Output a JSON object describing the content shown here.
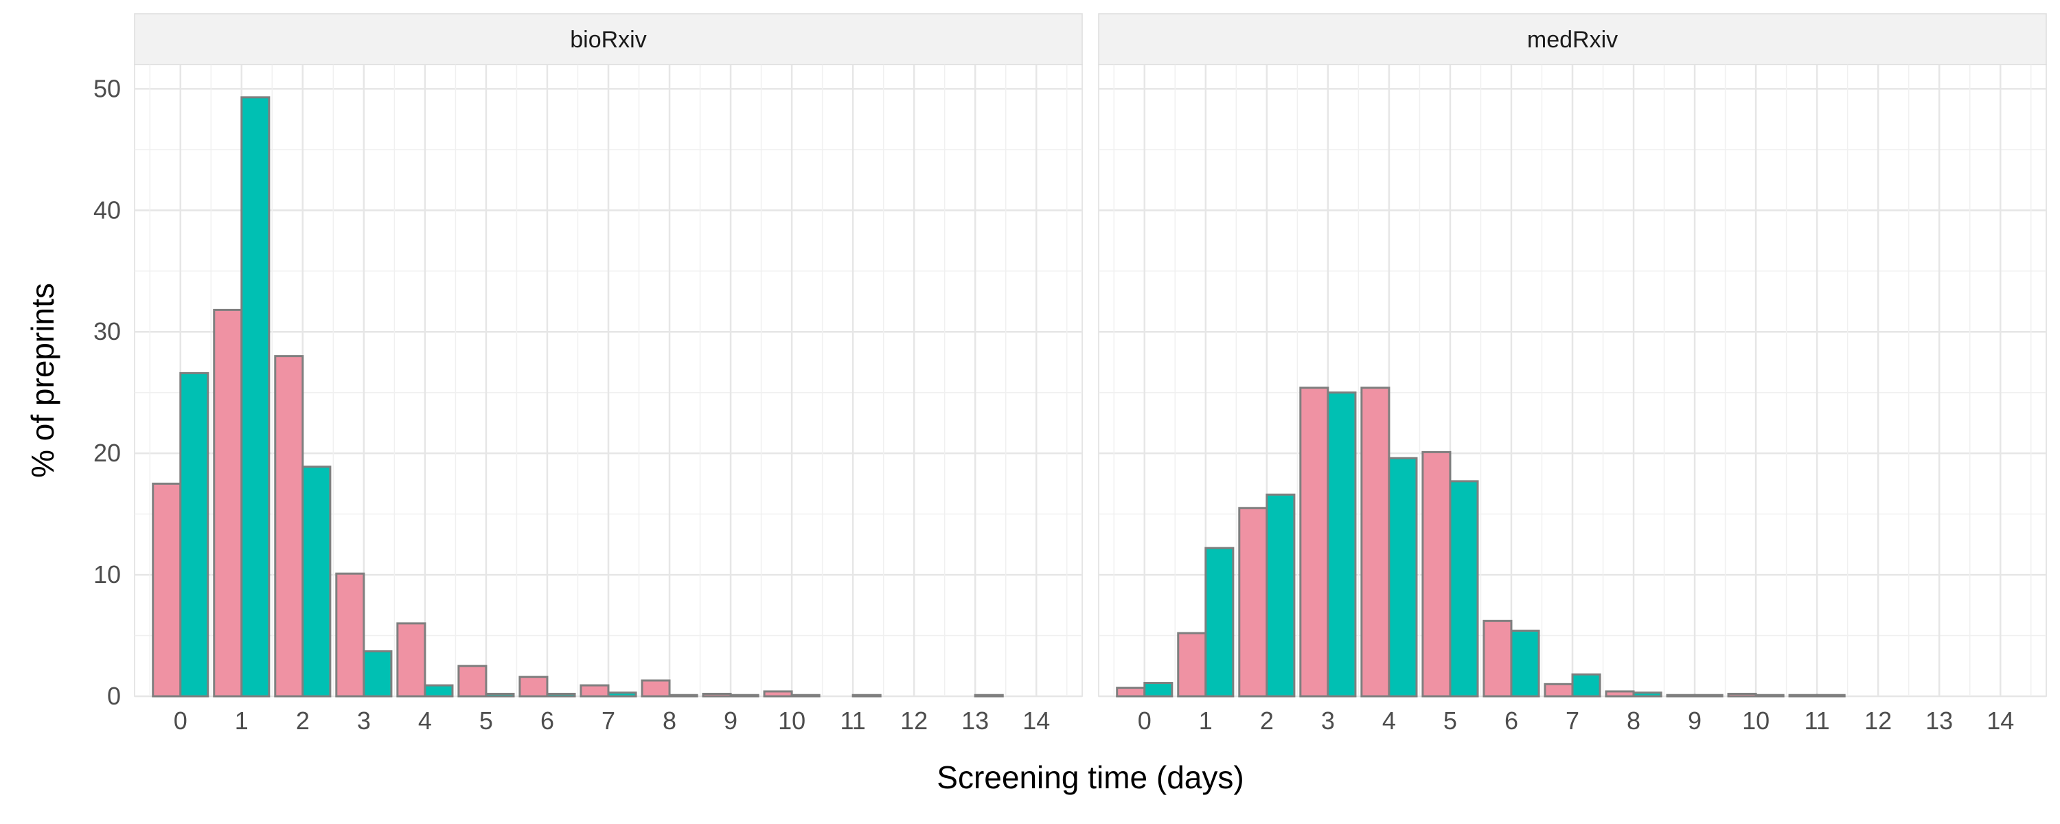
{
  "chart_data": {
    "type": "bar",
    "xlabel": "Screening time (days)",
    "ylabel": "% of preprints",
    "ylim": [
      0,
      52
    ],
    "yticks": [
      0,
      10,
      20,
      30,
      40,
      50
    ],
    "categories": [
      "0",
      "1",
      "2",
      "3",
      "4",
      "5",
      "6",
      "7",
      "8",
      "9",
      "10",
      "11",
      "12",
      "13",
      "14"
    ],
    "grid": true,
    "legend": "none",
    "colors": {
      "series_a": "#EF92A3",
      "series_b": "#00C0B3",
      "bar_outline": "#7f7f7f"
    },
    "panels": [
      {
        "title": "bioRxiv",
        "series": [
          {
            "values": [
              17.5,
              31.8,
              28.0,
              10.1,
              6.0,
              2.5,
              1.6,
              0.9,
              1.3,
              0.2,
              0.4,
              0.0,
              0.0,
              0.0,
              0.0
            ]
          },
          {
            "values": [
              26.6,
              49.3,
              18.9,
              3.7,
              0.9,
              0.2,
              0.2,
              0.3,
              0.1,
              0.1,
              0.1,
              0.1,
              0.0,
              0.1,
              0.0
            ]
          }
        ]
      },
      {
        "title": "medRxiv",
        "series": [
          {
            "values": [
              0.7,
              5.2,
              15.5,
              25.4,
              25.4,
              20.1,
              6.2,
              1.0,
              0.4,
              0.1,
              0.2,
              0.1,
              0.0,
              0.0,
              0.0
            ]
          },
          {
            "values": [
              1.1,
              12.2,
              16.6,
              25.0,
              19.6,
              17.7,
              5.4,
              1.8,
              0.3,
              0.1,
              0.1,
              0.1,
              0.0,
              0.0,
              0.0
            ]
          }
        ]
      }
    ]
  }
}
